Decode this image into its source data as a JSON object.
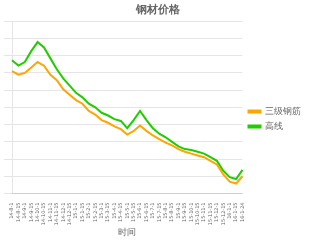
{
  "chart_data": {
    "type": "line",
    "title": "钢材价格",
    "xlabel": "时间",
    "categories": [
      "14-8-1",
      "14-8-15",
      "14-9-1",
      "14-9-15",
      "14-10-1",
      "14-10-15",
      "14-11-1",
      "14-11-15",
      "14-12-1",
      "14-12-15",
      "15-1-1",
      "15-1-15",
      "15-2-1",
      "15-2-15",
      "15-3-1",
      "15-3-15",
      "15-4-1",
      "15-4-15",
      "15-5-1",
      "15-5-15",
      "15-6-1",
      "15-6-15",
      "15-7-1",
      "15-7-15",
      "15-8-1",
      "15-8-15",
      "15-9-1",
      "15-9-15",
      "15-10-1",
      "15-10-15",
      "15-11-1",
      "15-11-15",
      "15-12-1",
      "15-12-15",
      "16-1-1",
      "16-1-15",
      "16-1-24"
    ],
    "series": [
      {
        "name": "三级钢筋",
        "color": "#FFA500",
        "values": [
          3500,
          3460,
          3480,
          3540,
          3600,
          3560,
          3460,
          3400,
          3300,
          3240,
          3180,
          3140,
          3060,
          3020,
          2960,
          2930,
          2890,
          2860,
          2800,
          2840,
          2900,
          2840,
          2790,
          2750,
          2710,
          2680,
          2640,
          2610,
          2590,
          2570,
          2550,
          2510,
          2470,
          2360,
          2280,
          2260,
          2340
        ]
      },
      {
        "name": "高线",
        "color": "#22CC00",
        "values": [
          3620,
          3560,
          3600,
          3720,
          3820,
          3760,
          3640,
          3520,
          3420,
          3340,
          3260,
          3210,
          3140,
          3100,
          3040,
          3010,
          2970,
          2950,
          2870,
          2960,
          3060,
          2960,
          2870,
          2810,
          2770,
          2720,
          2670,
          2640,
          2630,
          2610,
          2590,
          2550,
          2510,
          2400,
          2330,
          2310,
          2410
        ]
      }
    ],
    "ylim": [
      2150,
      4050
    ],
    "yticks": [
      2150,
      2340,
      2530,
      2720,
      2910,
      3100,
      3290,
      3480,
      3670,
      3860,
      4050
    ],
    "grid": true,
    "legend": "right",
    "tick_labels": "x"
  }
}
